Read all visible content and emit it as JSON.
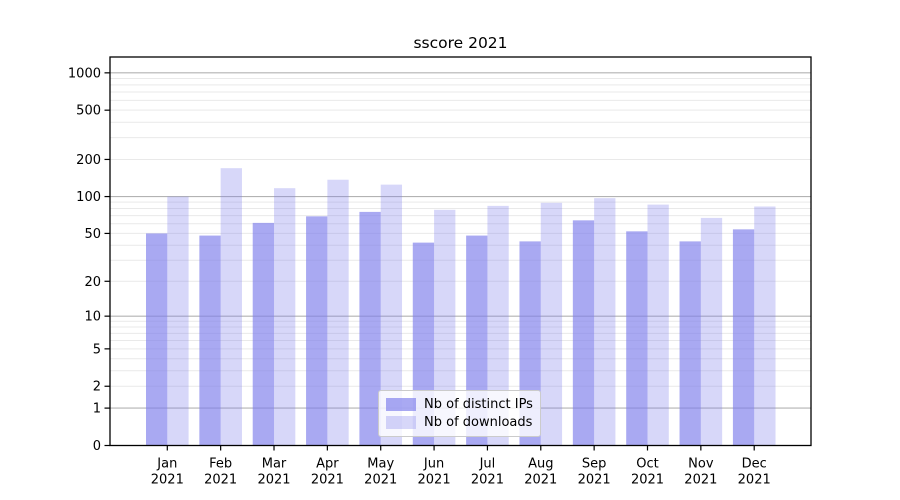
{
  "chart_data": {
    "type": "bar",
    "title": "sscore 2021",
    "categories": [
      "Jan",
      "Feb",
      "Mar",
      "Apr",
      "May",
      "Jun",
      "Jul",
      "Aug",
      "Sep",
      "Oct",
      "Nov",
      "Dec"
    ],
    "year_label": "2021",
    "series": [
      {
        "name": "Nb of distinct IPs",
        "color": "rgba(124,124,235,0.66)",
        "values": [
          50,
          48,
          61,
          69,
          75,
          42,
          48,
          43,
          64,
          52,
          43,
          54
        ]
      },
      {
        "name": "Nb of downloads",
        "color": "rgba(124,124,235,0.30)",
        "values": [
          100,
          170,
          117,
          137,
          125,
          78,
          84,
          89,
          97,
          86,
          67,
          83
        ]
      }
    ],
    "xlabel": "",
    "ylabel": "",
    "yscale": "symlog-like (log10 of 1+value)",
    "yticks": [
      0,
      1,
      2,
      5,
      10,
      20,
      50,
      100,
      200,
      500,
      1000
    ],
    "ylim": [
      0,
      1330
    ],
    "grid": {
      "enabled": true,
      "major_color": "#b3b3b3",
      "minor_color": "#e9e9e9"
    },
    "legend": {
      "position": "lower center",
      "labels": [
        "Nb of distinct IPs",
        "Nb of downloads"
      ]
    }
  }
}
